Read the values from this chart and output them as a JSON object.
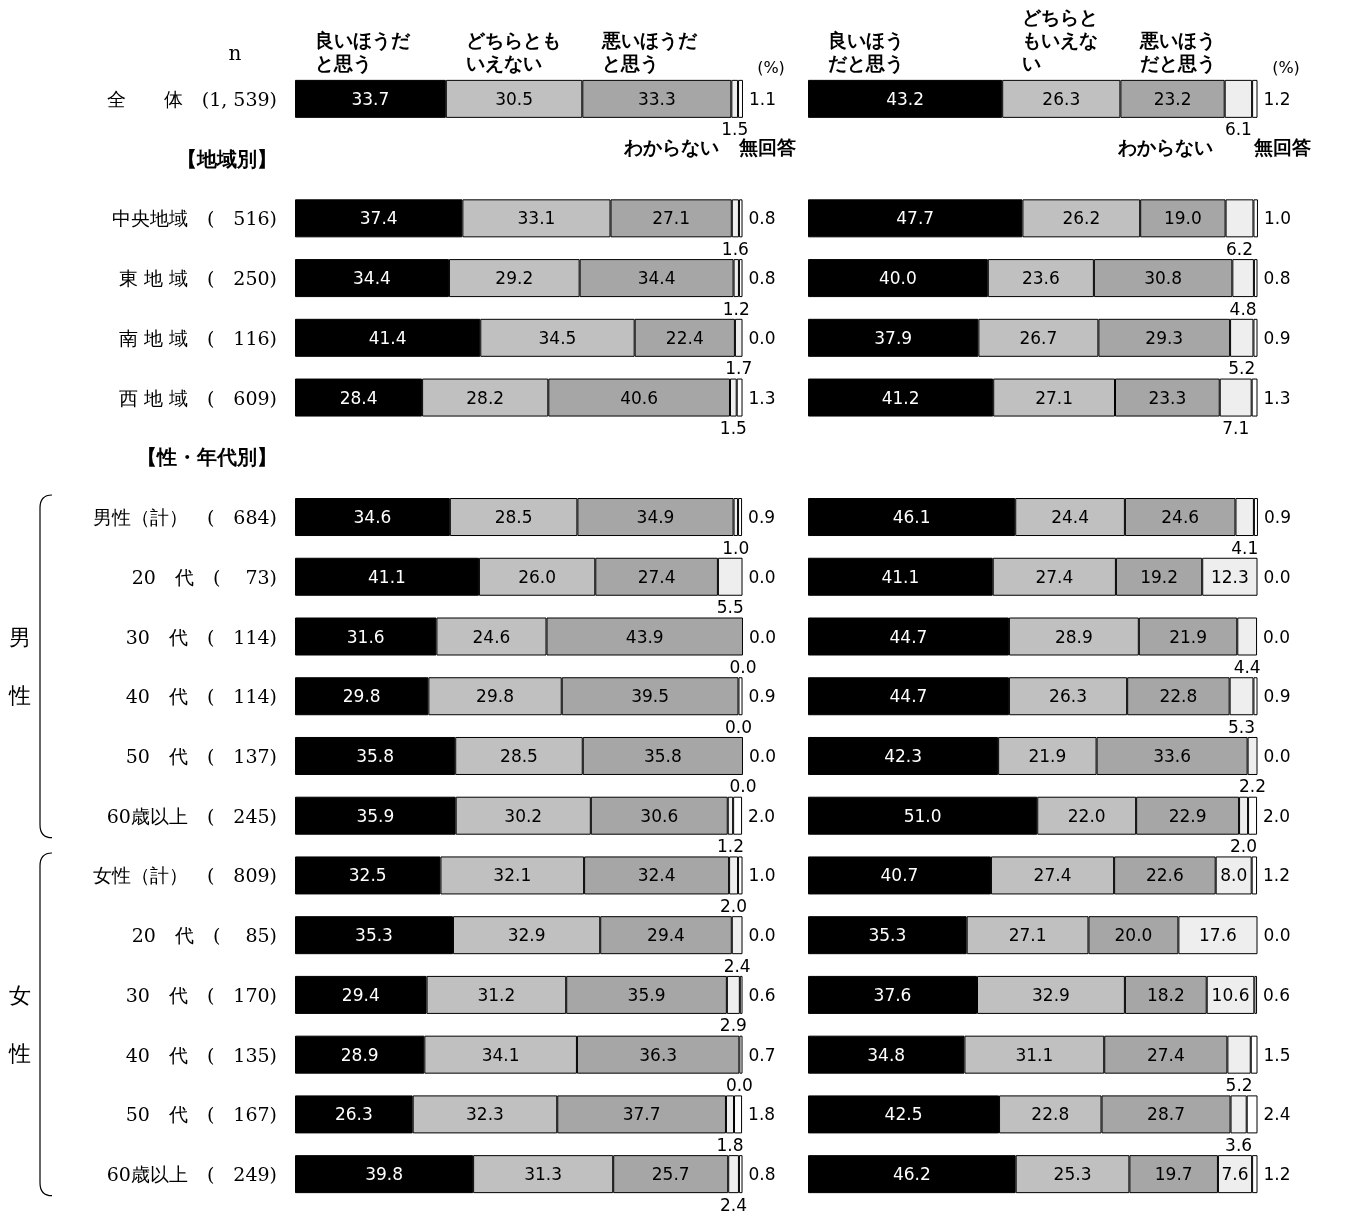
{
  "chart_data": [
    {
      "type": "bar",
      "orientation": "horizontal",
      "stacked": true,
      "legend": "top",
      "tick_labels": "y",
      "xlim": [
        0,
        101
      ],
      "categories": [
        "全　　体　(1, 539)",
        "【地域別】",
        "中央地域　(　516)",
        "東 地 域　(　250)",
        "南 地 域　(　116)",
        "西 地 域　(　609)",
        "【性・年代別】",
        "男性（計）　(　684)",
        "20　代　(　 73)",
        "30　代　(　114)",
        "40　代　(　114)",
        "50　代　(　137)",
        "60歳以上　(　245)",
        "女性（計）　(　809)",
        "20　代　(　 85)",
        "30　代　(　170)",
        "40　代　(　135)",
        "50　代　(　167)",
        "60歳以上　(　249)"
      ],
      "annotations": [
        "n",
        "(%)",
        "男性",
        "女性"
      ],
      "series": [
        {
          "name": "良いほうだと思う",
          "color": "#000000",
          "values": [
            33.7,
            null,
            37.4,
            34.4,
            41.4,
            28.4,
            null,
            34.6,
            41.1,
            31.6,
            29.8,
            35.8,
            35.9,
            32.5,
            35.3,
            29.4,
            28.9,
            26.3,
            39.8
          ],
          "value_labels": [
            "33.7",
            null,
            "37.4",
            "34.4",
            "41.4",
            "28.4",
            null,
            "34.6",
            "41.1",
            "31.6",
            "29.8",
            "35.8",
            "35.9",
            "32.5",
            "35.3",
            "29.4",
            "28.9",
            "26.3",
            "39.8"
          ]
        },
        {
          "name": "どちらともいえない",
          "color": "#c0c0c0",
          "values": [
            30.5,
            null,
            33.1,
            29.2,
            34.5,
            28.2,
            null,
            28.5,
            26.0,
            24.6,
            29.8,
            28.5,
            30.2,
            32.1,
            32.9,
            31.2,
            34.1,
            32.3,
            31.3
          ],
          "value_labels": [
            "30.5",
            null,
            "33.1",
            "29.2",
            "34.5",
            "28.2",
            null,
            "28.5",
            "26.0",
            "24.6",
            "29.8",
            "28.5",
            "30.2",
            "32.1",
            "32.9",
            "31.2",
            "34.1",
            "32.3",
            "31.3"
          ]
        },
        {
          "name": "悪いほうだと思う",
          "color": "#a6a6a6",
          "values": [
            33.3,
            null,
            27.1,
            34.4,
            22.4,
            40.6,
            null,
            34.9,
            27.4,
            43.9,
            39.5,
            35.8,
            30.6,
            32.4,
            29.4,
            35.9,
            36.3,
            37.7,
            25.7
          ],
          "value_labels": [
            "33.3",
            null,
            "27.1",
            "34.4",
            "22.4",
            "40.6",
            null,
            "34.9",
            "27.4",
            "43.9",
            "39.5",
            "35.8",
            "30.6",
            "32.4",
            "29.4",
            "35.9",
            "36.3",
            "37.7",
            "25.7"
          ]
        },
        {
          "name": "わからない",
          "color": "#eeeeee",
          "values": [
            1.5,
            null,
            1.6,
            1.2,
            1.7,
            1.5,
            null,
            1.0,
            5.5,
            0.0,
            0.0,
            0.0,
            1.2,
            2.0,
            2.4,
            2.9,
            0.0,
            1.8,
            2.4
          ],
          "value_labels": [
            "1.5",
            null,
            "1.6",
            "1.2",
            "1.7",
            "1.5",
            null,
            "1.0",
            "5.5",
            "0.0",
            "0.0",
            "0.0",
            "1.2",
            "2.0",
            "2.4",
            "2.9",
            "0.0",
            "1.8",
            "2.4"
          ]
        },
        {
          "name": "無回答",
          "color": "#ffffff",
          "values": [
            1.1,
            null,
            0.8,
            0.8,
            0.0,
            1.3,
            null,
            0.9,
            0.0,
            0.0,
            0.9,
            0.0,
            2.0,
            1.0,
            0.0,
            0.6,
            0.7,
            1.8,
            0.8
          ],
          "value_labels": [
            "1.1",
            null,
            "0.8",
            "0.8",
            "0.0",
            "1.3",
            null,
            "0.9",
            "0.0",
            "0.0",
            "0.9",
            "0.0",
            "2.0",
            "1.0",
            "0.0",
            "0.6",
            "0.7",
            "1.8",
            "0.8"
          ]
        }
      ]
    },
    {
      "type": "bar",
      "orientation": "horizontal",
      "stacked": true,
      "legend": "top",
      "tick_labels": false,
      "xlim": [
        0,
        101
      ],
      "categories": [
        null,
        null,
        null,
        null,
        null,
        null,
        null,
        null,
        null,
        null,
        null,
        null,
        null,
        null,
        null,
        null,
        null,
        null,
        null
      ],
      "annotations": [
        "(%)"
      ],
      "series": [
        {
          "name": "良いほうだと思う",
          "color": "#000000",
          "values": [
            43.2,
            null,
            47.7,
            40.0,
            37.9,
            41.2,
            null,
            46.1,
            41.1,
            44.7,
            44.7,
            42.3,
            51.0,
            40.7,
            35.3,
            37.6,
            34.8,
            42.5,
            46.2
          ],
          "value_labels": [
            "43.2",
            null,
            "47.7",
            "40.0",
            "37.9",
            "41.2",
            null,
            "46.1",
            "41.1",
            "44.7",
            "44.7",
            "42.3",
            "51.0",
            "40.7",
            "35.3",
            "37.6",
            "34.8",
            "42.5",
            "46.2"
          ]
        },
        {
          "name": "どちらともいえない",
          "color": "#c0c0c0",
          "values": [
            26.3,
            null,
            26.2,
            23.6,
            26.7,
            27.1,
            null,
            24.4,
            27.4,
            28.9,
            26.3,
            21.9,
            22.0,
            27.4,
            27.1,
            32.9,
            31.1,
            22.8,
            25.3
          ],
          "value_labels": [
            "26.3",
            null,
            "26.2",
            "23.6",
            "26.7",
            "27.1",
            null,
            "24.4",
            "27.4",
            "28.9",
            "26.3",
            "21.9",
            "22.0",
            "27.4",
            "27.1",
            "32.9",
            "31.1",
            "22.8",
            "25.3"
          ]
        },
        {
          "name": "悪いほうだと思う",
          "color": "#a6a6a6",
          "values": [
            23.2,
            null,
            19.0,
            30.8,
            29.3,
            23.3,
            null,
            24.6,
            19.2,
            21.9,
            22.8,
            33.6,
            22.9,
            22.6,
            20.0,
            18.2,
            27.4,
            28.7,
            19.7
          ],
          "value_labels": [
            "23.2",
            null,
            "19.0",
            "30.8",
            "29.3",
            "23.3",
            null,
            "24.6",
            "19.2",
            "21.9",
            "22.8",
            "33.6",
            "22.9",
            "22.6",
            "20.0",
            "18.2",
            "27.4",
            "28.7",
            "19.7"
          ]
        },
        {
          "name": "わからない",
          "color": "#eeeeee",
          "values": [
            6.1,
            null,
            6.2,
            4.8,
            5.2,
            7.1,
            null,
            4.1,
            12.3,
            4.4,
            5.3,
            2.2,
            2.0,
            8.0,
            17.6,
            10.6,
            5.2,
            3.6,
            7.6
          ],
          "value_labels": [
            "6.1",
            null,
            "6.2",
            "4.8",
            "5.2",
            "7.1",
            null,
            "4.1",
            "12.3",
            "4.4",
            "5.3",
            "2.2",
            "2.0",
            "8.0",
            "17.6",
            "10.6",
            "5.2",
            "3.6",
            "7.6"
          ]
        },
        {
          "name": "無回答",
          "color": "#ffffff",
          "values": [
            1.2,
            null,
            1.0,
            0.8,
            0.9,
            1.3,
            null,
            0.9,
            0.0,
            0.0,
            0.9,
            0.0,
            2.0,
            1.2,
            0.0,
            0.6,
            1.5,
            2.4,
            1.2
          ],
          "value_labels": [
            "1.2",
            null,
            "1.0",
            "0.8",
            "0.9",
            "1.3",
            null,
            "0.9",
            "0.0",
            "0.0",
            "0.9",
            "0.0",
            "2.0",
            "1.2",
            "0.0",
            "0.6",
            "1.5",
            "2.4",
            "1.2"
          ]
        }
      ]
    }
  ]
}
